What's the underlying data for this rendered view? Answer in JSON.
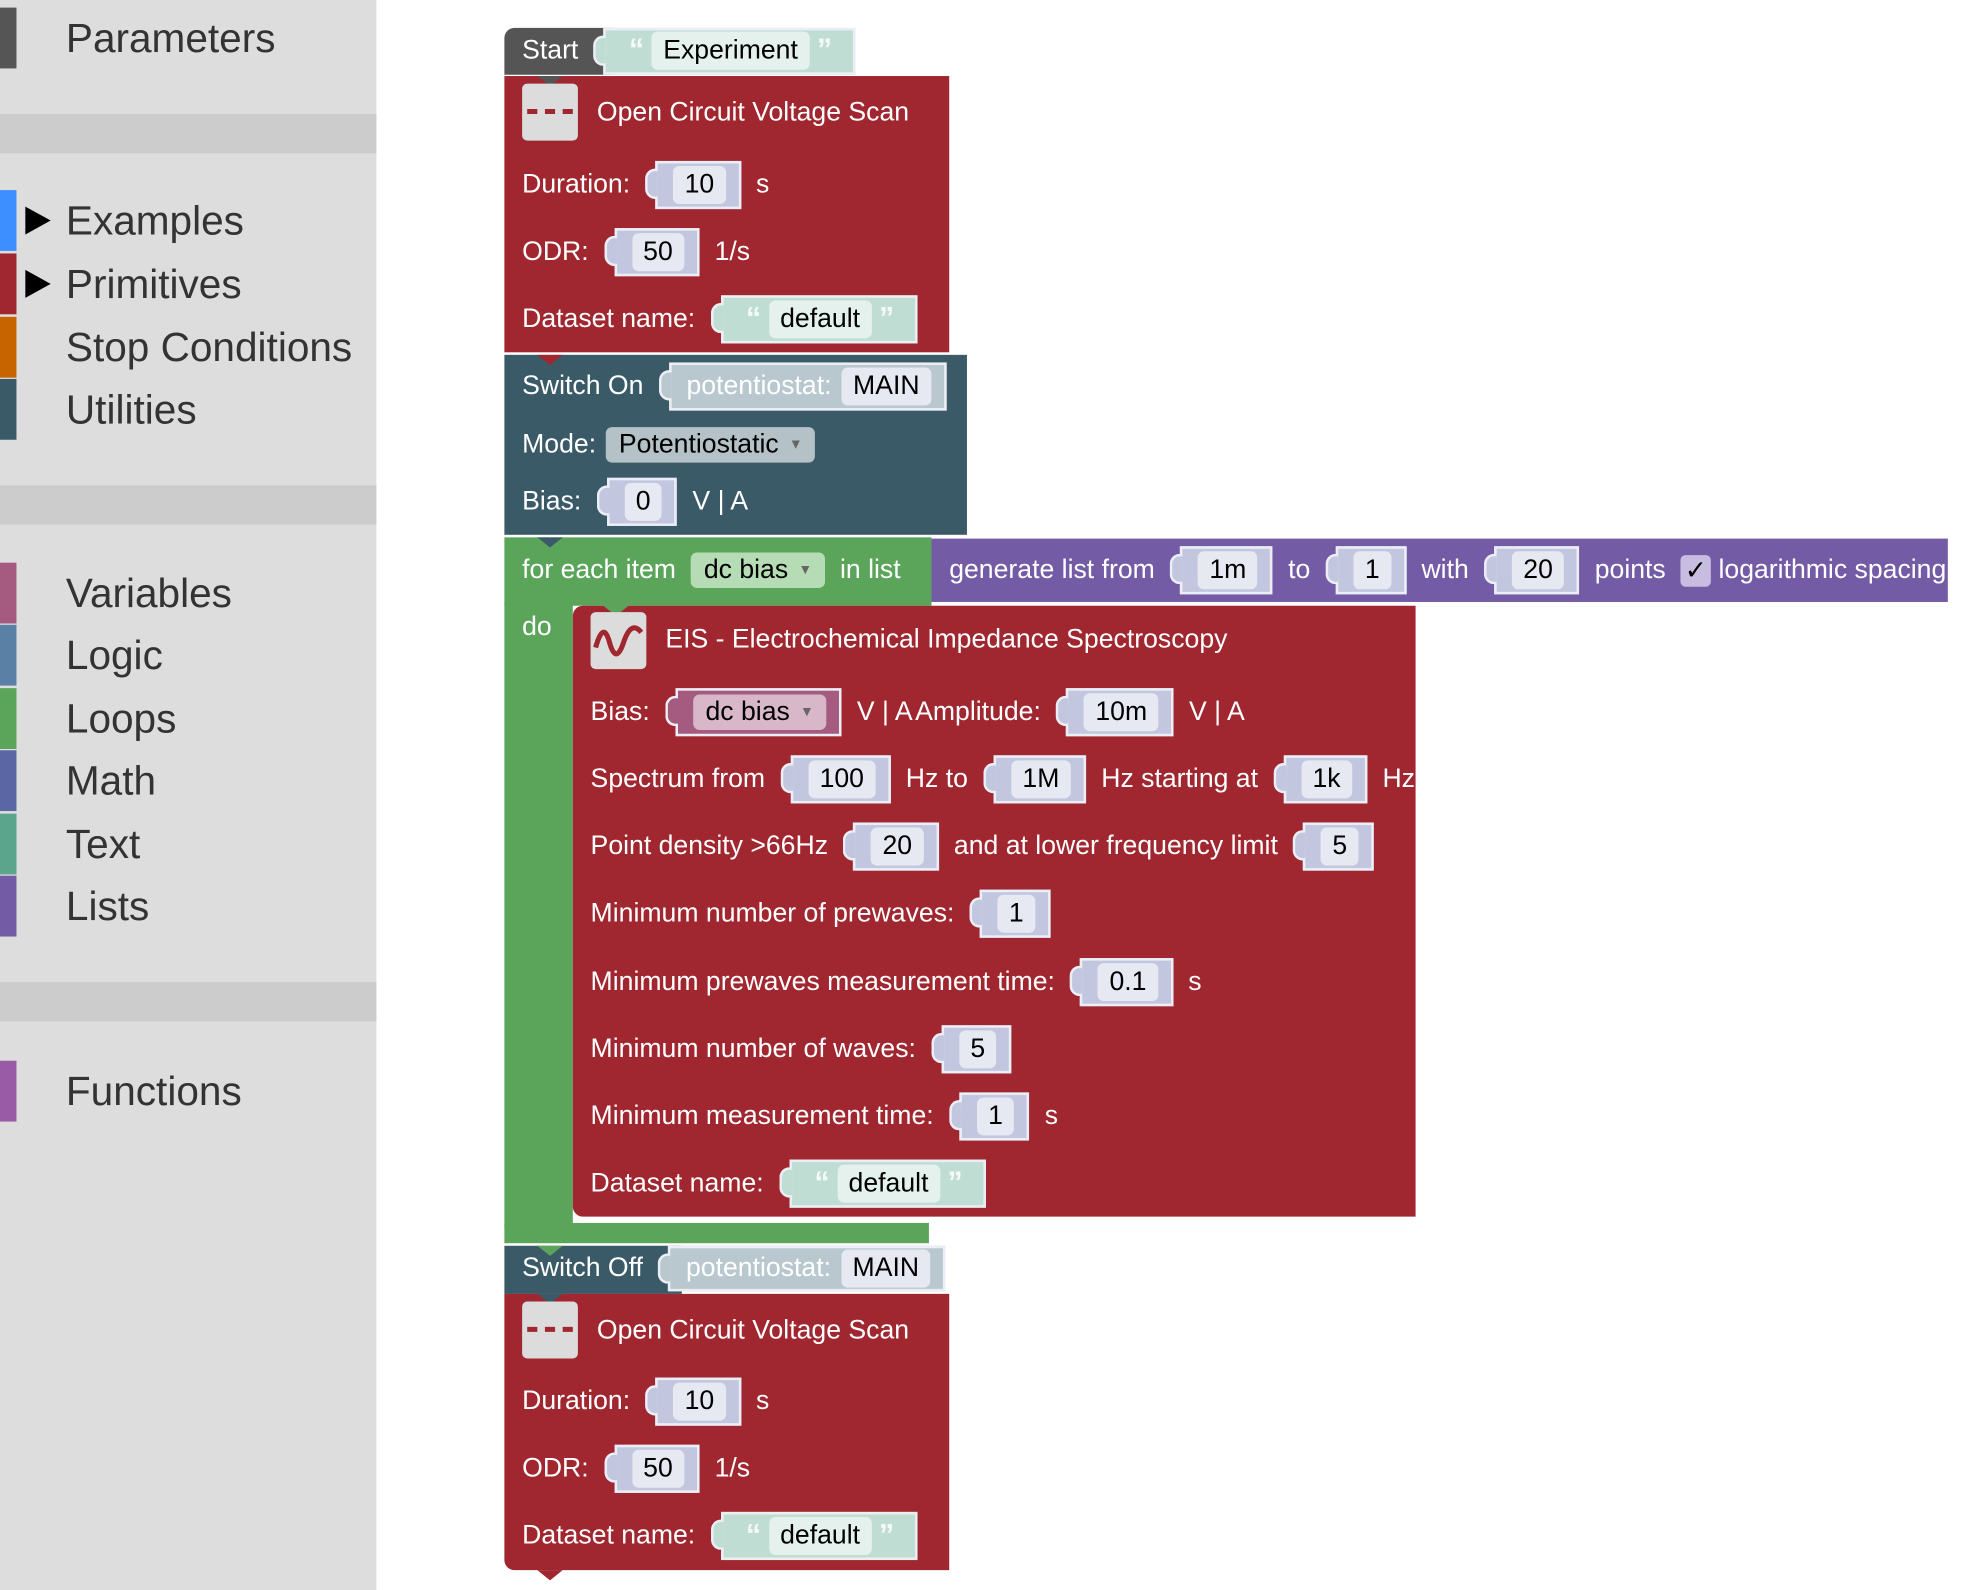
{
  "sidebar": {
    "items": [
      {
        "label": "Parameters",
        "color": "#555555",
        "expandable": false
      },
      {
        "label": "Examples",
        "color": "#3d8fff",
        "expandable": true
      },
      {
        "label": "Primitives",
        "color": "#a0262f",
        "expandable": true
      },
      {
        "label": "Stop Conditions",
        "color": "#c86400",
        "expandable": false
      },
      {
        "label": "Utilities",
        "color": "#3a5a68",
        "expandable": false
      },
      {
        "label": "Variables",
        "color": "#a55b80",
        "expandable": false
      },
      {
        "label": "Logic",
        "color": "#5b80a5",
        "expandable": false
      },
      {
        "label": "Loops",
        "color": "#5ba55b",
        "expandable": false
      },
      {
        "label": "Math",
        "color": "#5b67a5",
        "expandable": false
      },
      {
        "label": "Text",
        "color": "#5ba58c",
        "expandable": false
      },
      {
        "label": "Lists",
        "color": "#745ba5",
        "expandable": false
      },
      {
        "label": "Functions",
        "color": "#995ba5",
        "expandable": false
      }
    ]
  },
  "start": {
    "label": "Start",
    "name": "Experiment",
    "open_quote": "“",
    "close_quote": "”"
  },
  "ocv1": {
    "title": "Open Circuit Voltage Scan",
    "duration_label": "Duration:",
    "duration": "10",
    "duration_unit": "s",
    "odr_label": "ODR:",
    "odr": "50",
    "odr_unit": "1/s",
    "dataset_label": "Dataset name:",
    "dataset": "default"
  },
  "switch_on": {
    "label": "Switch On",
    "pot_label": "potentiostat:",
    "pot_value": "MAIN",
    "mode_label": "Mode:",
    "mode": "Potentiostatic",
    "bias_label": "Bias:",
    "bias": "0",
    "bias_unit": "V | A"
  },
  "loop": {
    "for_label": "for each item",
    "var": "dc bias",
    "in_list": "in list",
    "do_label": "do",
    "gen_label": "generate list from",
    "from": "1m",
    "to_label": "to",
    "to": "1",
    "with_label": "with",
    "points": "20",
    "points_label": "points",
    "checkbox": "✓",
    "log_checked": true,
    "log_label": "logarithmic spacing"
  },
  "eis": {
    "title": "EIS - Electrochemical Impedance Spectroscopy",
    "bias_label": "Bias:",
    "bias_var": "dc bias",
    "bias_unit": "V | A",
    "amp_label": "Amplitude:",
    "amplitude": "10m",
    "amp_unit": "V | A",
    "spectrum_label": "Spectrum from",
    "from": "100",
    "hz_to": "Hz to",
    "to": "1M",
    "starting_label": "Hz starting at",
    "start": "1k",
    "hz": "Hz",
    "density_label": "Point density >66Hz",
    "density": "20",
    "lower_label": "and at lower frequency limit",
    "lower": "5",
    "prewaves_label": "Minimum number of prewaves:",
    "prewaves": "1",
    "prewave_time_label": "Minimum prewaves measurement time:",
    "prewave_time": "0.1",
    "prewave_time_unit": "s",
    "waves_label": "Minimum number of waves:",
    "waves": "5",
    "meas_time_label": "Minimum measurement time:",
    "meas_time": "1",
    "meas_time_unit": "s",
    "dataset_label": "Dataset name:",
    "dataset": "default"
  },
  "switch_off": {
    "label": "Switch Off",
    "pot_label": "potentiostat:",
    "pot_value": "MAIN"
  },
  "ocv2": {
    "title": "Open Circuit Voltage Scan",
    "duration_label": "Duration:",
    "duration": "10",
    "duration_unit": "s",
    "odr_label": "ODR:",
    "odr": "50",
    "odr_unit": "1/s",
    "dataset_label": "Dataset name:",
    "dataset": "default"
  },
  "colors": {
    "primitive": "#a0262f",
    "utility": "#3a5a68",
    "loop": "#5ba55b",
    "list": "#745ba5",
    "start": "#555555",
    "text": "#c0ddd3",
    "number": "#c3c6df",
    "variable": "#a55b80"
  }
}
